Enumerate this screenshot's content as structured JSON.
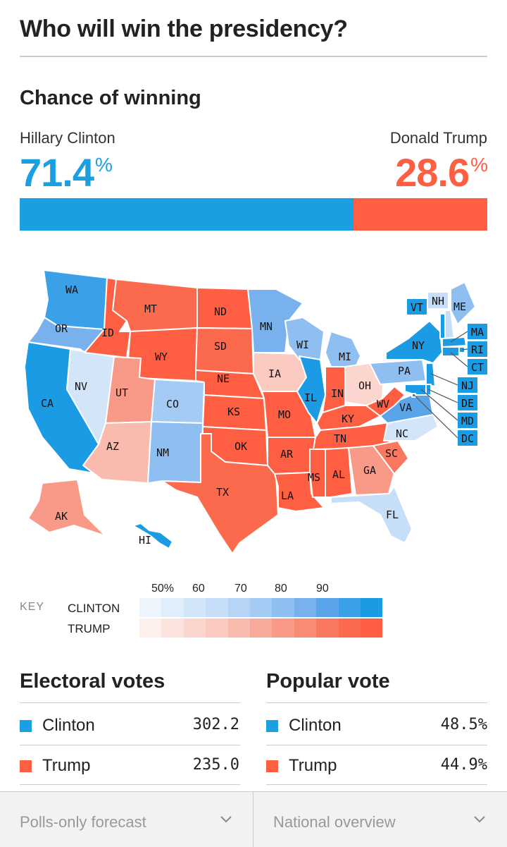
{
  "header": {
    "title": "Who will win the presidency?"
  },
  "chance": {
    "heading": "Chance of winning",
    "clinton": {
      "name": "Hillary Clinton",
      "pct": "71.4",
      "value": 71.4
    },
    "trump": {
      "name": "Donald Trump",
      "pct": "28.6",
      "value": 28.6
    },
    "pct_sign": "%"
  },
  "colors": {
    "clinton": "#1a9fe0",
    "trump": "#fe5e41"
  },
  "map": {
    "states": [
      {
        "abbr": "WA",
        "party": "D",
        "level": 9
      },
      {
        "abbr": "OR",
        "party": "D",
        "level": 7
      },
      {
        "abbr": "CA",
        "party": "D",
        "level": 10
      },
      {
        "abbr": "NV",
        "party": "D",
        "level": 2
      },
      {
        "abbr": "ID",
        "party": "R",
        "level": 10
      },
      {
        "abbr": "MT",
        "party": "R",
        "level": 9
      },
      {
        "abbr": "WY",
        "party": "R",
        "level": 10
      },
      {
        "abbr": "UT",
        "party": "R",
        "level": 6
      },
      {
        "abbr": "AZ",
        "party": "R",
        "level": 4
      },
      {
        "abbr": "CO",
        "party": "D",
        "level": 5
      },
      {
        "abbr": "NM",
        "party": "D",
        "level": 6
      },
      {
        "abbr": "ND",
        "party": "R",
        "level": 10
      },
      {
        "abbr": "SD",
        "party": "R",
        "level": 9
      },
      {
        "abbr": "NE",
        "party": "R",
        "level": 10
      },
      {
        "abbr": "KS",
        "party": "R",
        "level": 10
      },
      {
        "abbr": "OK",
        "party": "R",
        "level": 10
      },
      {
        "abbr": "TX",
        "party": "R",
        "level": 9
      },
      {
        "abbr": "MN",
        "party": "D",
        "level": 7
      },
      {
        "abbr": "IA",
        "party": "R",
        "level": 3
      },
      {
        "abbr": "MO",
        "party": "R",
        "level": 10
      },
      {
        "abbr": "AR",
        "party": "R",
        "level": 10
      },
      {
        "abbr": "LA",
        "party": "R",
        "level": 10
      },
      {
        "abbr": "WI",
        "party": "D",
        "level": 6
      },
      {
        "abbr": "IL",
        "party": "D",
        "level": 10
      },
      {
        "abbr": "MI",
        "party": "D",
        "level": 6
      },
      {
        "abbr": "IN",
        "party": "R",
        "level": 10
      },
      {
        "abbr": "OH",
        "party": "R",
        "level": 2
      },
      {
        "abbr": "KY",
        "party": "R",
        "level": 10
      },
      {
        "abbr": "TN",
        "party": "R",
        "level": 10
      },
      {
        "abbr": "MS",
        "party": "R",
        "level": 10
      },
      {
        "abbr": "AL",
        "party": "R",
        "level": 10
      },
      {
        "abbr": "GA",
        "party": "R",
        "level": 6
      },
      {
        "abbr": "FL",
        "party": "D",
        "level": 3
      },
      {
        "abbr": "SC",
        "party": "R",
        "level": 8
      },
      {
        "abbr": "NC",
        "party": "D",
        "level": 2
      },
      {
        "abbr": "VA",
        "party": "D",
        "level": 8
      },
      {
        "abbr": "WV",
        "party": "R",
        "level": 10
      },
      {
        "abbr": "PA",
        "party": "D",
        "level": 6
      },
      {
        "abbr": "NY",
        "party": "D",
        "level": 10
      },
      {
        "abbr": "VT",
        "party": "D",
        "level": 10
      },
      {
        "abbr": "NH",
        "party": "D",
        "level": 3
      },
      {
        "abbr": "ME",
        "party": "D",
        "level": 6
      },
      {
        "abbr": "MA",
        "party": "D",
        "level": 10
      },
      {
        "abbr": "RI",
        "party": "D",
        "level": 10
      },
      {
        "abbr": "CT",
        "party": "D",
        "level": 10
      },
      {
        "abbr": "NJ",
        "party": "D",
        "level": 10
      },
      {
        "abbr": "DE",
        "party": "D",
        "level": 10
      },
      {
        "abbr": "MD",
        "party": "D",
        "level": 10
      },
      {
        "abbr": "DC",
        "party": "D",
        "level": 10
      },
      {
        "abbr": "AK",
        "party": "R",
        "level": 6
      },
      {
        "abbr": "HI",
        "party": "D",
        "level": 10
      }
    ]
  },
  "key": {
    "label": "KEY",
    "ticks": [
      "50%",
      "60",
      "70",
      "80",
      "90"
    ],
    "clinton_label": "CLINTON",
    "trump_label": "TRUMP",
    "clinton_scale": [
      "#eef5fd",
      "#e0edfb",
      "#d3e6f9",
      "#c6def7",
      "#b6d5f6",
      "#a4cbf4",
      "#8fbef1",
      "#78b1ee",
      "#5aa4ea",
      "#3aa0e8",
      "#1a9be4"
    ],
    "trump_scale": [
      "#fdefec",
      "#fce3de",
      "#fbd6ce",
      "#fac9bf",
      "#f8bbae",
      "#f8ab9b",
      "#f89a87",
      "#f98a73",
      "#f97960",
      "#fc6a4d",
      "#fe5e41"
    ]
  },
  "electoral": {
    "heading": "Electoral votes",
    "rows": [
      {
        "name": "Clinton",
        "value": "302.2"
      },
      {
        "name": "Trump",
        "value": "235.0"
      }
    ]
  },
  "popular": {
    "heading": "Popular vote",
    "rows": [
      {
        "name": "Clinton",
        "value": "48.5%"
      },
      {
        "name": "Trump",
        "value": "44.9%"
      }
    ]
  },
  "footer": {
    "forecast_label": "Polls-only forecast",
    "overview_label": "National overview"
  }
}
